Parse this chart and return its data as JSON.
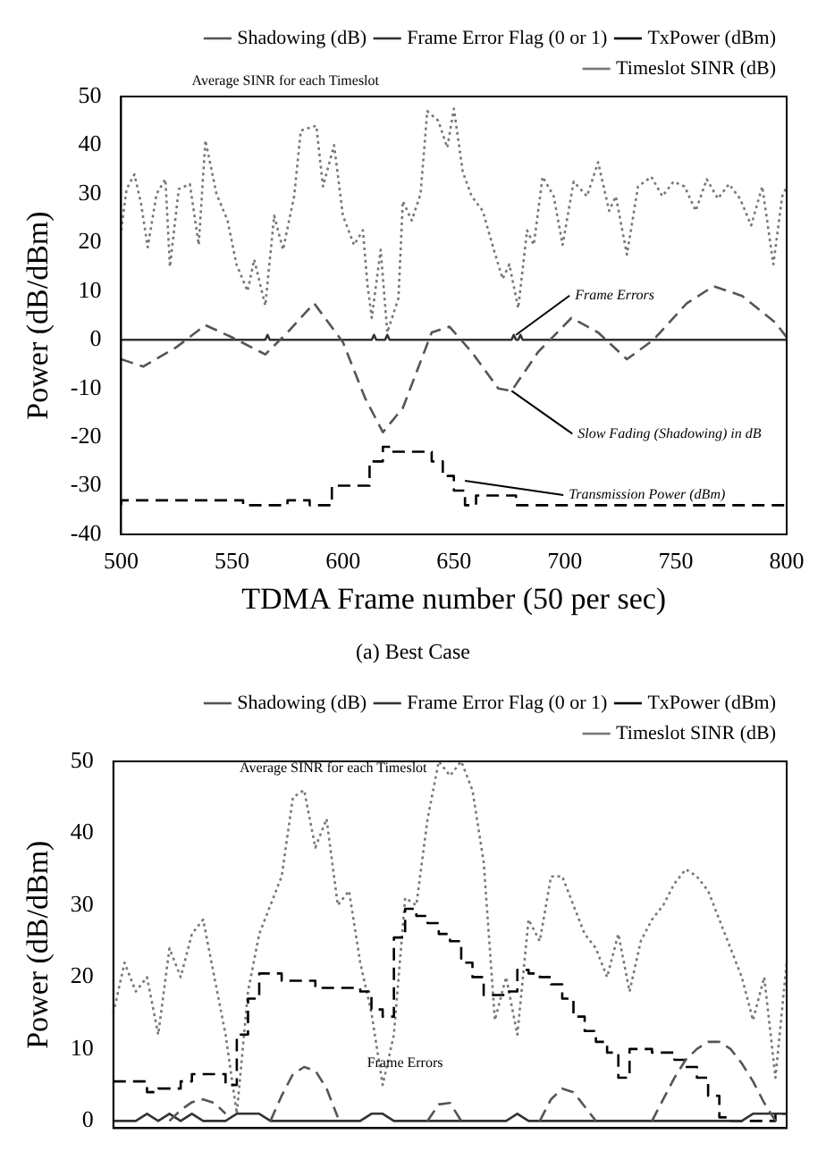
{
  "chart_data": [
    {
      "type": "line",
      "xlabel": "TDMA Frame number (50 per sec)",
      "ylabel": "Power (dB/dBm)",
      "xlim": [
        500,
        800
      ],
      "xticks": [
        500,
        550,
        600,
        650,
        700,
        750,
        800
      ],
      "ylim": [
        -40,
        50
      ],
      "yticks": [
        -40,
        -30,
        -20,
        -10,
        0,
        10,
        20,
        30,
        40,
        50
      ],
      "grid": false,
      "legend": "top right",
      "marker": "none",
      "series": [
        {
          "name": "Shadowing (dB)",
          "color": "#555555",
          "line_style": "dashed",
          "x": [
            500,
            510,
            525,
            538,
            550,
            565,
            575,
            587,
            600,
            610,
            618,
            627,
            640,
            648,
            658,
            670,
            676,
            688,
            703,
            715,
            728,
            740,
            755,
            767,
            780,
            795,
            800
          ],
          "values": [
            -4,
            -5.5,
            -1.5,
            3,
            0.5,
            -3,
            1.5,
            7.5,
            -0.5,
            -12,
            -19,
            -14,
            1.5,
            2.7,
            -2.5,
            -10,
            -10.5,
            -2.5,
            4.5,
            1.5,
            -4,
            0,
            7.5,
            11,
            9,
            3.5,
            0.5
          ]
        },
        {
          "name": "Frame Error Flag (0 or 1)",
          "color": "#333333",
          "line_style": "solid",
          "x": [
            500,
            565,
            566,
            567,
            613,
            614,
            615,
            619,
            620,
            621,
            676,
            677,
            678,
            679,
            680,
            681,
            800
          ],
          "values": [
            0,
            0,
            1,
            0,
            0,
            1,
            0,
            0,
            1,
            0,
            0,
            1,
            0,
            0,
            1,
            0,
            0
          ]
        },
        {
          "name": "TxPower (dBm)",
          "type": "step",
          "color": "#000000",
          "line_style": "dashed",
          "x": [
            500,
            555,
            575,
            585,
            595,
            612,
            618,
            622,
            640,
            645,
            650,
            655,
            660,
            678,
            692,
            800
          ],
          "values": [
            -34,
            -33,
            -34,
            -33,
            -34,
            -30,
            -25,
            -22,
            -23,
            -25,
            -28,
            -31,
            -34,
            -32,
            -34,
            -34
          ]
        },
        {
          "name": "Timeslot SINR (dB)",
          "color": "#777777",
          "line_style": "dotted",
          "x": [
            500,
            502.5,
            506,
            509,
            512,
            516,
            520,
            522,
            526,
            531,
            535,
            538,
            543,
            548,
            552,
            557,
            560,
            565,
            569,
            573,
            578,
            581,
            588,
            591,
            596,
            600,
            605,
            609,
            611,
            613,
            617,
            620,
            625,
            627,
            631,
            635,
            638,
            643,
            647,
            650,
            654,
            658,
            663,
            668,
            672,
            675,
            679,
            683,
            686,
            690,
            695,
            699,
            704,
            710,
            715,
            720,
            723,
            728,
            733,
            739,
            744,
            749,
            754,
            759,
            764,
            769,
            774,
            779,
            784,
            789,
            794,
            798,
            800
          ],
          "values": [
            22.5,
            31,
            34,
            28,
            19,
            30,
            33,
            15,
            31,
            32,
            19.5,
            41,
            30,
            24.5,
            15.5,
            10,
            16.5,
            7,
            25.5,
            18.5,
            29.5,
            43,
            44,
            31.5,
            40,
            25.5,
            19.5,
            22.5,
            11.5,
            4.5,
            18.5,
            1.5,
            8.5,
            28.5,
            24.5,
            30,
            47,
            45,
            39.5,
            47.5,
            34.5,
            29.5,
            26.5,
            18.5,
            12.5,
            15.5,
            6.5,
            22.5,
            19.5,
            33.5,
            29.5,
            19.5,
            32.5,
            29.5,
            36.5,
            26.5,
            29.5,
            17.5,
            31.5,
            33.5,
            29.5,
            32.5,
            31.5,
            26.5,
            33,
            29,
            32,
            29,
            23.5,
            31.5,
            15.5,
            29.5,
            31.5
          ]
        }
      ],
      "annotations": [
        "Average SINR for each Timeslot",
        {
          "text": "Frame Errors",
          "x": 678,
          "y": 1
        },
        {
          "text": "Slow Fading (Shadowing) in dB",
          "x": 676,
          "y": -10.5
        },
        {
          "text": "Transmission Power (dBm)",
          "x": 655,
          "y": -29
        },
        "(a) Best Case"
      ]
    },
    {
      "type": "line",
      "ylabel": "Power (dB/dBm)",
      "categories": [
        null,
        null,
        null,
        null,
        null,
        null,
        null,
        null,
        null,
        null,
        null,
        null,
        null,
        null,
        null,
        null,
        null,
        null,
        null,
        null,
        null,
        null,
        null,
        null,
        null,
        null,
        null,
        null,
        null,
        null,
        null,
        null,
        null,
        null,
        null,
        null,
        null,
        null,
        null,
        null,
        null,
        null,
        null,
        null,
        null,
        null,
        null,
        null,
        null,
        null,
        null,
        null,
        null,
        null,
        null,
        null,
        null,
        null,
        null,
        null,
        null
      ],
      "ylim": [
        -1,
        50
      ],
      "yticks": [
        0,
        10,
        20,
        30,
        40,
        50
      ],
      "tick_labels": "y",
      "grid": false,
      "legend": "top right",
      "marker": "none",
      "series": [
        {
          "name": "Shadowing (dB)",
          "color": "#555555",
          "line_style": "dashed",
          "values": [
            null,
            null,
            null,
            null,
            null,
            0,
            1.5,
            2.6,
            3,
            2.5,
            1,
            null,
            null,
            null,
            0,
            3.5,
            6.5,
            7.5,
            7,
            4.5,
            0.5,
            null,
            null,
            null,
            null,
            null,
            null,
            null,
            0,
            2.3,
            2.5,
            0,
            null,
            null,
            null,
            null,
            null,
            null,
            0,
            3,
            4.5,
            4,
            2,
            0,
            null,
            null,
            null,
            null,
            0,
            3,
            6,
            8.5,
            10,
            11,
            11,
            10,
            8,
            5.5,
            2.5,
            0,
            null
          ]
        },
        {
          "name": "Frame Error Flag (0 or 1)",
          "color": "#333333",
          "line_style": "solid",
          "values": [
            0,
            0,
            0,
            1,
            0,
            1,
            0,
            1,
            0,
            0,
            0,
            1,
            1,
            1,
            0,
            0,
            0,
            0,
            0,
            0,
            0,
            0,
            0,
            1,
            1,
            0,
            0,
            0,
            0,
            0,
            0,
            0,
            0,
            0,
            0,
            0,
            1,
            0,
            0,
            0,
            0,
            0,
            0,
            0,
            0,
            0,
            0,
            0,
            0,
            0,
            0,
            0,
            0,
            0,
            0,
            0,
            0,
            1,
            1,
            1,
            1
          ]
        },
        {
          "name": "TxPower (dBm)",
          "type": "step",
          "color": "#000000",
          "line_style": "dashed",
          "values": [
            5.5,
            5.5,
            5.5,
            5.5,
            4,
            4.5,
            4.5,
            5.5,
            6.5,
            6.5,
            6.5,
            5,
            12,
            17,
            20.5,
            20.5,
            19.5,
            19.5,
            19.5,
            18.5,
            18.5,
            18.5,
            18.5,
            18,
            15.5,
            14.5,
            25.5,
            29.5,
            28.5,
            27.5,
            26,
            25,
            22,
            20,
            17.5,
            17.5,
            18,
            21,
            20.5,
            20,
            19,
            17,
            14.5,
            12.5,
            11,
            9.5,
            6,
            10,
            10,
            9.5,
            9.5,
            8.5,
            7.5,
            6,
            3.5,
            0.5,
            0,
            0,
            0,
            0,
            1
          ]
        },
        {
          "name": "Timeslot SINR (dB)",
          "color": "#777777",
          "line_style": "dotted",
          "values": [
            15,
            22,
            18,
            20,
            12,
            24,
            20,
            26,
            28,
            20,
            12,
            1,
            18,
            26,
            30,
            34,
            45,
            46,
            38,
            42,
            30,
            32,
            22,
            15,
            5,
            12,
            31,
            30,
            42,
            50,
            48,
            50,
            46,
            36,
            14,
            20,
            12,
            28,
            25,
            34,
            34,
            30,
            26,
            24,
            20,
            26,
            18,
            25,
            28,
            30,
            33,
            35,
            34,
            32,
            28,
            24,
            20,
            14,
            20,
            6,
            22
          ]
        }
      ],
      "annotations": [
        "Average SINR for each Timeslot",
        "Frame Errors"
      ]
    }
  ]
}
